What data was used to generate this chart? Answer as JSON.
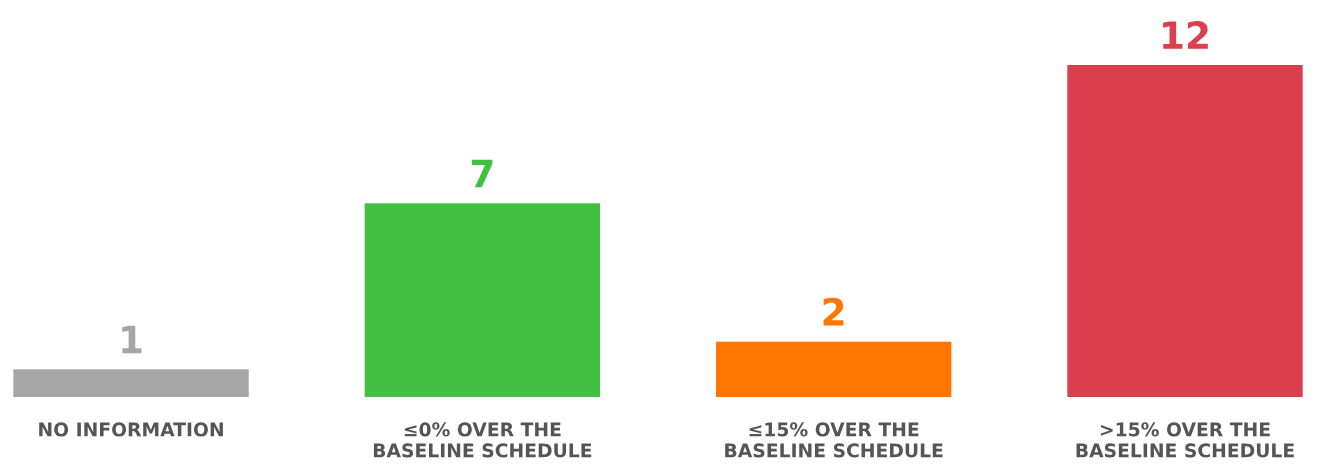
{
  "chart_data": {
    "type": "bar",
    "categories": [
      "NO INFORMATION",
      "≤0% OVER THE\nBASELINE SCHEDULE",
      "≤15% OVER THE\nBASELINE SCHEDULE",
      ">15% OVER THE\nBASELINE SCHEDULE"
    ],
    "values": [
      1,
      7,
      2,
      12
    ],
    "colors": [
      "#a6a6a6",
      "#41c043",
      "#ff7500",
      "#db3e4c"
    ],
    "data_labels": true,
    "grid": false,
    "legend": false
  }
}
